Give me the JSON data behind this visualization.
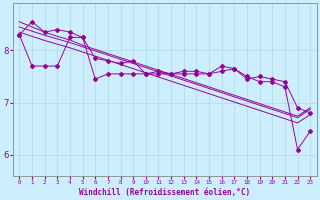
{
  "title": "",
  "xlabel": "Windchill (Refroidissement éolien,°C)",
  "ylabel": "",
  "bg_color": "#cceeff",
  "grid_color": "#aadddd",
  "line_color": "#990099",
  "xlim": [
    -0.5,
    23.5
  ],
  "ylim": [
    5.6,
    8.9
  ],
  "yticks": [
    6,
    7,
    8
  ],
  "xticks": [
    0,
    1,
    2,
    3,
    4,
    5,
    6,
    7,
    8,
    9,
    10,
    11,
    12,
    13,
    14,
    15,
    16,
    17,
    18,
    19,
    20,
    21,
    22,
    23
  ],
  "series": {
    "zigzag1": [
      8.3,
      8.55,
      8.35,
      8.4,
      8.35,
      8.25,
      7.85,
      7.8,
      7.75,
      7.8,
      7.55,
      7.6,
      7.55,
      7.6,
      7.6,
      7.55,
      7.7,
      7.65,
      7.45,
      7.5,
      7.45,
      7.4,
      6.9,
      6.8
    ],
    "zigzag2": [
      8.3,
      7.7,
      7.7,
      7.7,
      8.25,
      8.25,
      7.45,
      7.55,
      7.55,
      7.55,
      7.55,
      7.55,
      7.55,
      7.55,
      7.55,
      7.55,
      7.6,
      7.65,
      7.5,
      7.4,
      7.4,
      7.3,
      6.1,
      6.45
    ],
    "trend1": [
      8.55,
      8.45,
      8.35,
      8.27,
      8.2,
      8.1,
      8.02,
      7.94,
      7.86,
      7.78,
      7.7,
      7.62,
      7.54,
      7.46,
      7.38,
      7.3,
      7.22,
      7.14,
      7.06,
      6.98,
      6.9,
      6.82,
      6.74,
      6.9
    ],
    "trend2": [
      8.45,
      8.37,
      8.29,
      8.22,
      8.15,
      8.07,
      7.99,
      7.91,
      7.83,
      7.75,
      7.67,
      7.59,
      7.51,
      7.43,
      7.35,
      7.27,
      7.19,
      7.11,
      7.03,
      6.95,
      6.87,
      6.79,
      6.71,
      6.87
    ],
    "trend3": [
      8.35,
      8.27,
      8.19,
      8.12,
      8.05,
      7.97,
      7.89,
      7.81,
      7.73,
      7.65,
      7.57,
      7.49,
      7.41,
      7.33,
      7.25,
      7.17,
      7.09,
      7.01,
      6.93,
      6.85,
      6.77,
      6.69,
      6.61,
      6.77
    ]
  }
}
